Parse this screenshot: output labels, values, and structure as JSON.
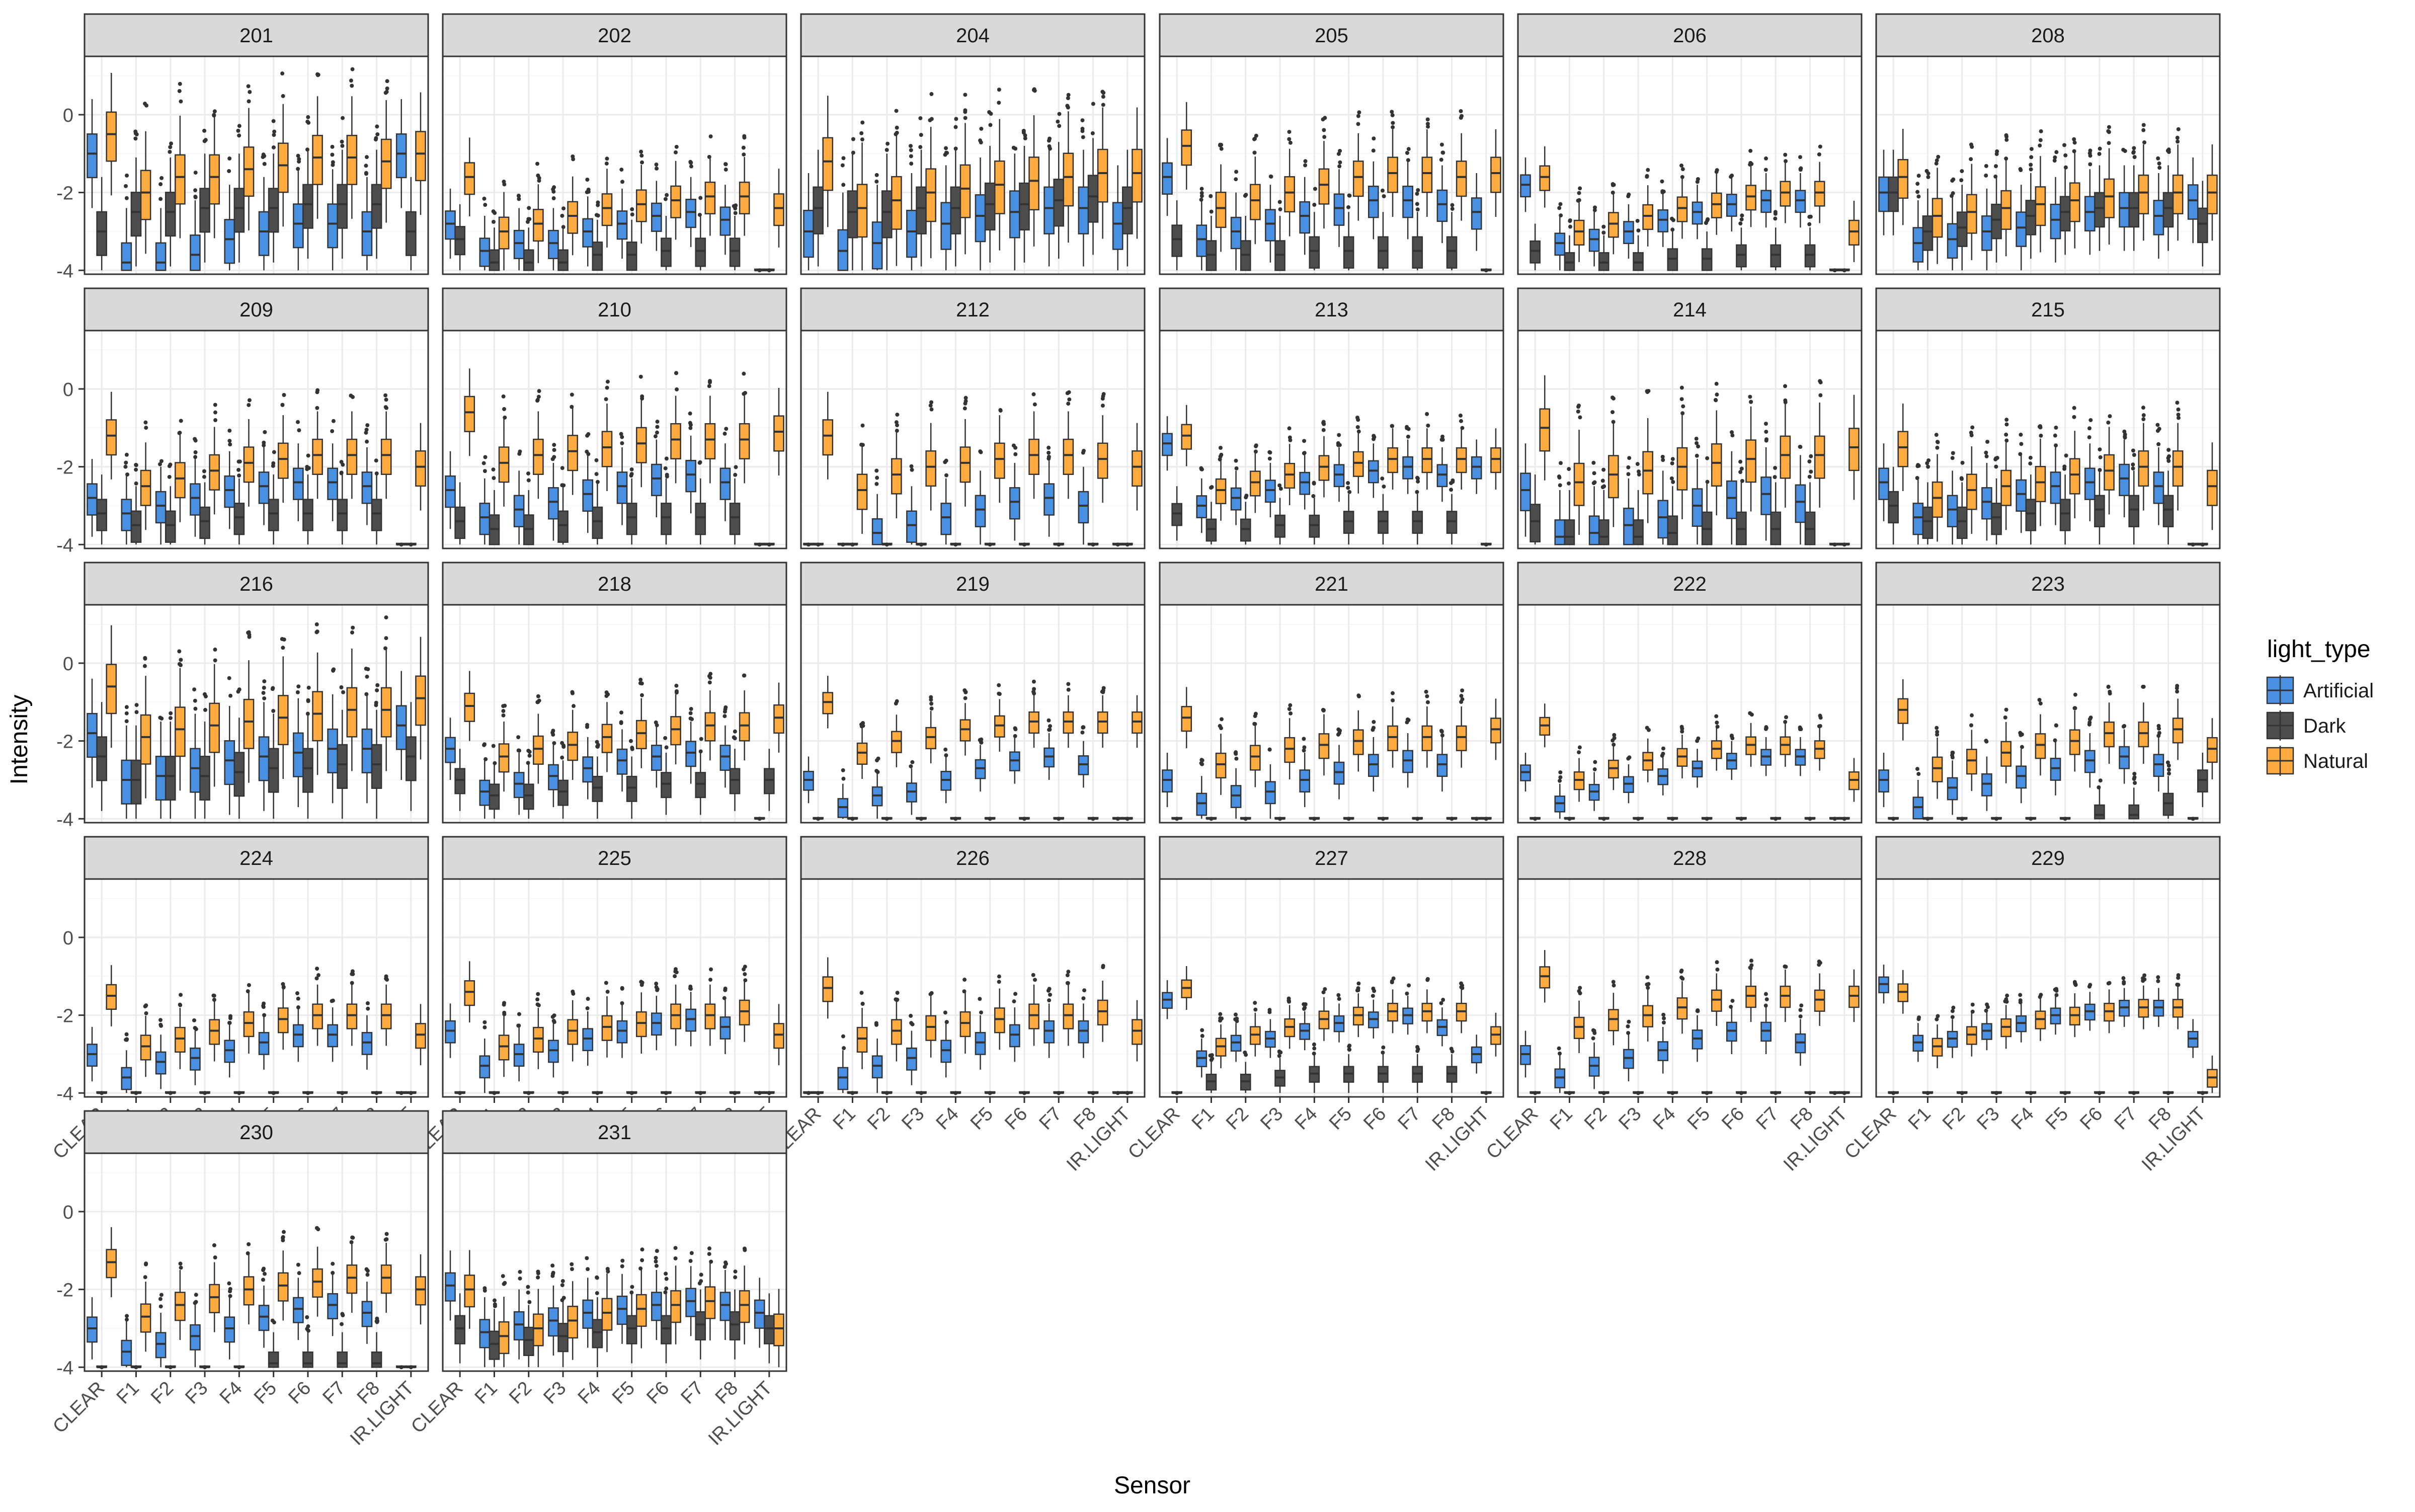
{
  "chart_data": {
    "type": "boxplot",
    "facet_by": "device",
    "xlabel": "Sensor",
    "ylabel": "Intensity",
    "x_categories": [
      "CLEAR",
      "F1",
      "F2",
      "F3",
      "F4",
      "F5",
      "F6",
      "F7",
      "F8",
      "IR.LIGHT"
    ],
    "y_ticks": [
      0,
      -2,
      -4
    ],
    "ylim": [
      -4.1,
      1.5
    ],
    "grid": true,
    "legend": {
      "title": "light_type",
      "position": "right",
      "entries": [
        {
          "name": "Artificial",
          "color": "#4a90e2"
        },
        {
          "name": "Dark",
          "color": "#4d4d4d"
        },
        {
          "name": "Natural",
          "color": "#ffab40"
        }
      ]
    },
    "x_axis_shown_on_panels": [
      "224",
      "225",
      "226",
      "227",
      "228",
      "229",
      "230",
      "231"
    ],
    "series_median_profiles": {
      "description_note": "",
      "panels": [
        {
          "id": "201",
          "artificial": [
            -1.0,
            -3.8,
            -3.8,
            -3.6,
            -3.2,
            -3.0,
            -2.8,
            -2.8,
            -3.0,
            -1.0
          ],
          "dark": [
            -3.0,
            -2.5,
            -2.5,
            -2.4,
            -2.4,
            -2.4,
            -2.3,
            -2.3,
            -2.3,
            -3.0
          ],
          "natural": [
            -0.5,
            -2.0,
            -1.6,
            -1.6,
            -1.4,
            -1.3,
            -1.1,
            -1.1,
            -1.2,
            -1.0
          ],
          "spread": 1.4
        },
        {
          "id": "202",
          "artificial": [
            -2.8,
            -3.5,
            -3.3,
            -3.3,
            -3.0,
            -2.8,
            -2.6,
            -2.5,
            -2.7,
            -4.0
          ],
          "dark": [
            -3.2,
            -3.8,
            -3.8,
            -3.8,
            -3.6,
            -3.6,
            -3.5,
            -3.5,
            -3.5,
            -4.0
          ],
          "natural": [
            -1.6,
            -3.0,
            -2.8,
            -2.6,
            -2.4,
            -2.3,
            -2.2,
            -2.1,
            -2.1,
            -2.4
          ],
          "spread": 0.9
        },
        {
          "id": "204",
          "artificial": [
            -3.0,
            -3.5,
            -3.3,
            -3.0,
            -2.8,
            -2.6,
            -2.5,
            -2.4,
            -2.4,
            -2.8
          ],
          "dark": [
            -2.4,
            -2.5,
            -2.5,
            -2.4,
            -2.4,
            -2.3,
            -2.3,
            -2.2,
            -2.1,
            -2.4
          ],
          "natural": [
            -1.2,
            -2.4,
            -2.2,
            -2.0,
            -1.9,
            -1.8,
            -1.7,
            -1.6,
            -1.5,
            -1.5
          ],
          "spread": 1.5
        },
        {
          "id": "205",
          "artificial": [
            -1.6,
            -3.2,
            -3.0,
            -2.8,
            -2.6,
            -2.4,
            -2.2,
            -2.2,
            -2.3,
            -2.5
          ],
          "dark": [
            -3.2,
            -3.6,
            -3.6,
            -3.6,
            -3.5,
            -3.5,
            -3.5,
            -3.5,
            -3.5,
            -4.0
          ],
          "natural": [
            -0.8,
            -2.4,
            -2.2,
            -2.0,
            -1.8,
            -1.6,
            -1.5,
            -1.5,
            -1.6,
            -1.5
          ],
          "spread": 1.0
        },
        {
          "id": "206",
          "artificial": [
            -1.8,
            -3.3,
            -3.2,
            -3.0,
            -2.7,
            -2.5,
            -2.3,
            -2.2,
            -2.2,
            -4.0
          ],
          "dark": [
            -3.5,
            -3.8,
            -3.8,
            -3.8,
            -3.7,
            -3.7,
            -3.6,
            -3.6,
            -3.6,
            -4.0
          ],
          "natural": [
            -1.6,
            -3.0,
            -2.8,
            -2.6,
            -2.4,
            -2.3,
            -2.1,
            -2.0,
            -2.0,
            -3.0
          ],
          "spread": 0.7
        },
        {
          "id": "208",
          "artificial": [
            -2.0,
            -3.3,
            -3.2,
            -3.0,
            -2.9,
            -2.7,
            -2.5,
            -2.4,
            -2.6,
            -2.2
          ],
          "dark": [
            -2.0,
            -3.0,
            -2.9,
            -2.7,
            -2.6,
            -2.5,
            -2.4,
            -2.4,
            -2.4,
            -2.8
          ],
          "natural": [
            -1.6,
            -2.6,
            -2.5,
            -2.4,
            -2.3,
            -2.2,
            -2.1,
            -2.0,
            -2.0,
            -2.0
          ],
          "spread": 1.1
        },
        {
          "id": "209",
          "artificial": [
            -2.8,
            -3.2,
            -3.0,
            -2.8,
            -2.6,
            -2.5,
            -2.4,
            -2.4,
            -2.5,
            -4.0
          ],
          "dark": [
            -3.2,
            -3.5,
            -3.5,
            -3.4,
            -3.3,
            -3.2,
            -3.2,
            -3.2,
            -3.2,
            -4.0
          ],
          "natural": [
            -1.2,
            -2.5,
            -2.3,
            -2.1,
            -1.9,
            -1.8,
            -1.7,
            -1.7,
            -1.7,
            -2.0
          ],
          "spread": 1.0
        },
        {
          "id": "210",
          "artificial": [
            -2.6,
            -3.3,
            -3.1,
            -2.9,
            -2.7,
            -2.5,
            -2.3,
            -2.2,
            -2.4,
            -4.0
          ],
          "dark": [
            -3.4,
            -3.6,
            -3.6,
            -3.5,
            -3.4,
            -3.3,
            -3.3,
            -3.3,
            -3.3,
            -4.0
          ],
          "natural": [
            -0.6,
            -1.9,
            -1.7,
            -1.6,
            -1.5,
            -1.4,
            -1.3,
            -1.3,
            -1.3,
            -1.1
          ],
          "spread": 1.0
        },
        {
          "id": "212",
          "artificial": [
            -4.0,
            -4.0,
            -3.7,
            -3.5,
            -3.3,
            -3.1,
            -2.9,
            -2.8,
            -3.0,
            -4.0
          ],
          "dark": [
            -4.0,
            -4.0,
            -4.0,
            -4.0,
            -4.0,
            -4.0,
            -4.0,
            -4.0,
            -4.0,
            -4.0
          ],
          "natural": [
            -1.2,
            -2.6,
            -2.2,
            -2.0,
            -1.9,
            -1.8,
            -1.7,
            -1.7,
            -1.8,
            -2.0
          ],
          "spread": 1.0
        },
        {
          "id": "213",
          "artificial": [
            -1.4,
            -3.0,
            -2.8,
            -2.6,
            -2.4,
            -2.2,
            -2.1,
            -2.0,
            -2.2,
            -2.0
          ],
          "dark": [
            -3.2,
            -3.6,
            -3.6,
            -3.5,
            -3.5,
            -3.4,
            -3.4,
            -3.4,
            -3.4,
            -4.0
          ],
          "natural": [
            -1.2,
            -2.6,
            -2.4,
            -2.2,
            -2.0,
            -1.9,
            -1.8,
            -1.8,
            -1.8,
            -1.8
          ],
          "spread": 0.7
        },
        {
          "id": "214",
          "artificial": [
            -2.6,
            -3.8,
            -3.7,
            -3.5,
            -3.3,
            -3.0,
            -2.8,
            -2.7,
            -2.9,
            -4.0
          ],
          "dark": [
            -3.4,
            -3.8,
            -3.8,
            -3.8,
            -3.7,
            -3.6,
            -3.6,
            -3.6,
            -3.6,
            -4.0
          ],
          "natural": [
            -1.0,
            -2.4,
            -2.2,
            -2.1,
            -2.0,
            -1.9,
            -1.8,
            -1.7,
            -1.7,
            -1.5
          ],
          "spread": 1.2
        },
        {
          "id": "215",
          "artificial": [
            -2.4,
            -3.3,
            -3.1,
            -2.9,
            -2.7,
            -2.5,
            -2.4,
            -2.3,
            -2.5,
            -4.0
          ],
          "dark": [
            -3.0,
            -3.4,
            -3.4,
            -3.3,
            -3.2,
            -3.2,
            -3.1,
            -3.1,
            -3.1,
            -4.0
          ],
          "natural": [
            -1.5,
            -2.8,
            -2.6,
            -2.5,
            -2.4,
            -2.2,
            -2.1,
            -2.0,
            -2.0,
            -2.5
          ],
          "spread": 1.0
        },
        {
          "id": "216",
          "artificial": [
            -1.8,
            -3.0,
            -2.9,
            -2.7,
            -2.5,
            -2.4,
            -2.3,
            -2.2,
            -2.2,
            -1.6
          ],
          "dark": [
            -2.4,
            -3.0,
            -2.9,
            -2.9,
            -2.8,
            -2.7,
            -2.7,
            -2.6,
            -2.6,
            -2.4
          ],
          "natural": [
            -0.6,
            -1.9,
            -1.7,
            -1.6,
            -1.5,
            -1.4,
            -1.3,
            -1.2,
            -1.2,
            -0.9
          ],
          "spread": 1.4
        },
        {
          "id": "218",
          "artificial": [
            -2.2,
            -3.3,
            -3.1,
            -2.9,
            -2.7,
            -2.5,
            -2.4,
            -2.3,
            -2.4,
            -4.0
          ],
          "dark": [
            -3.0,
            -3.4,
            -3.4,
            -3.3,
            -3.2,
            -3.2,
            -3.1,
            -3.1,
            -3.0,
            -3.0
          ],
          "natural": [
            -1.1,
            -2.4,
            -2.2,
            -2.1,
            -1.9,
            -1.8,
            -1.7,
            -1.6,
            -1.6,
            -1.4
          ],
          "spread": 0.8
        },
        {
          "id": "219",
          "artificial": [
            -3.0,
            -3.7,
            -3.4,
            -3.3,
            -3.0,
            -2.7,
            -2.5,
            -2.4,
            -2.6,
            -4.0
          ],
          "dark": [
            -4.0,
            -4.0,
            -4.0,
            -4.0,
            -4.0,
            -4.0,
            -4.0,
            -4.0,
            -4.0,
            -4.0
          ],
          "natural": [
            -1.0,
            -2.3,
            -2.0,
            -1.9,
            -1.7,
            -1.6,
            -1.5,
            -1.5,
            -1.5,
            -1.5
          ],
          "spread": 0.6
        },
        {
          "id": "221",
          "artificial": [
            -3.0,
            -3.6,
            -3.4,
            -3.3,
            -3.0,
            -2.8,
            -2.6,
            -2.5,
            -2.6,
            -4.0
          ],
          "dark": [
            -4.0,
            -4.0,
            -4.0,
            -4.0,
            -4.0,
            -4.0,
            -4.0,
            -4.0,
            -4.0,
            -4.0
          ],
          "natural": [
            -1.4,
            -2.6,
            -2.4,
            -2.2,
            -2.1,
            -2.0,
            -1.9,
            -1.9,
            -1.9,
            -1.7
          ],
          "spread": 0.7
        },
        {
          "id": "222",
          "artificial": [
            -2.8,
            -3.6,
            -3.3,
            -3.1,
            -2.9,
            -2.7,
            -2.5,
            -2.4,
            -2.4,
            -4.0
          ],
          "dark": [
            -4.0,
            -4.0,
            -4.0,
            -4.0,
            -4.0,
            -4.0,
            -4.0,
            -4.0,
            -4.0,
            -4.0
          ],
          "natural": [
            -1.6,
            -3.0,
            -2.7,
            -2.5,
            -2.4,
            -2.2,
            -2.1,
            -2.1,
            -2.2,
            -3.0
          ],
          "spread": 0.5
        },
        {
          "id": "223",
          "artificial": [
            -3.0,
            -3.7,
            -3.2,
            -3.1,
            -2.9,
            -2.7,
            -2.5,
            -2.4,
            -2.6,
            -4.0
          ],
          "dark": [
            -4.0,
            -4.0,
            -4.0,
            -4.0,
            -4.0,
            -4.0,
            -3.9,
            -3.9,
            -3.6,
            -3.0
          ],
          "natural": [
            -1.2,
            -2.7,
            -2.5,
            -2.3,
            -2.1,
            -2.0,
            -1.8,
            -1.8,
            -1.7,
            -2.2
          ],
          "spread": 0.7
        },
        {
          "id": "224",
          "artificial": [
            -3.0,
            -3.6,
            -3.2,
            -3.1,
            -2.9,
            -2.7,
            -2.5,
            -2.5,
            -2.7,
            -4.0
          ],
          "dark": [
            -4.0,
            -4.0,
            -4.0,
            -4.0,
            -4.0,
            -4.0,
            -4.0,
            -4.0,
            -4.0,
            -4.0
          ],
          "natural": [
            -1.5,
            -2.8,
            -2.6,
            -2.4,
            -2.2,
            -2.1,
            -2.0,
            -2.0,
            -2.0,
            -2.5
          ],
          "spread": 0.7
        },
        {
          "id": "225",
          "artificial": [
            -2.4,
            -3.3,
            -3.0,
            -2.9,
            -2.6,
            -2.4,
            -2.2,
            -2.1,
            -2.3,
            -4.0
          ],
          "dark": [
            -4.0,
            -4.0,
            -4.0,
            -4.0,
            -4.0,
            -4.0,
            -4.0,
            -4.0,
            -4.0,
            -4.0
          ],
          "natural": [
            -1.4,
            -2.8,
            -2.6,
            -2.4,
            -2.3,
            -2.2,
            -2.0,
            -2.0,
            -1.9,
            -2.5
          ],
          "spread": 0.7
        },
        {
          "id": "226",
          "artificial": [
            -4.0,
            -3.6,
            -3.3,
            -3.1,
            -2.9,
            -2.7,
            -2.5,
            -2.4,
            -2.4,
            -4.0
          ],
          "dark": [
            -4.0,
            -4.0,
            -4.0,
            -4.0,
            -4.0,
            -4.0,
            -4.0,
            -4.0,
            -4.0,
            -4.0
          ],
          "natural": [
            -1.3,
            -2.6,
            -2.4,
            -2.3,
            -2.2,
            -2.1,
            -2.0,
            -2.0,
            -1.9,
            -2.4
          ],
          "spread": 0.7
        },
        {
          "id": "227",
          "artificial": [
            -1.6,
            -3.1,
            -2.7,
            -2.6,
            -2.4,
            -2.2,
            -2.1,
            -2.0,
            -2.3,
            -3.0
          ],
          "dark": [
            -4.0,
            -3.7,
            -3.7,
            -3.6,
            -3.5,
            -3.5,
            -3.5,
            -3.5,
            -3.5,
            -4.0
          ],
          "natural": [
            -1.3,
            -2.8,
            -2.5,
            -2.3,
            -2.1,
            -2.0,
            -1.9,
            -1.9,
            -1.9,
            -2.5
          ],
          "spread": 0.5
        },
        {
          "id": "228",
          "artificial": [
            -3.0,
            -3.6,
            -3.3,
            -3.1,
            -2.9,
            -2.6,
            -2.4,
            -2.4,
            -2.7,
            -4.0
          ],
          "dark": [
            -4.0,
            -4.0,
            -4.0,
            -4.0,
            -4.0,
            -4.0,
            -4.0,
            -4.0,
            -4.0,
            -4.0
          ],
          "natural": [
            -1.0,
            -2.3,
            -2.1,
            -2.0,
            -1.8,
            -1.6,
            -1.5,
            -1.5,
            -1.6,
            -1.5
          ],
          "spread": 0.6
        },
        {
          "id": "229",
          "artificial": [
            -1.2,
            -2.7,
            -2.6,
            -2.4,
            -2.2,
            -2.0,
            -1.9,
            -1.8,
            -1.8,
            -2.6
          ],
          "dark": [
            -4.0,
            -4.0,
            -4.0,
            -4.0,
            -4.0,
            -4.0,
            -4.0,
            -4.0,
            -4.0,
            -4.0
          ],
          "natural": [
            -1.4,
            -2.8,
            -2.5,
            -2.3,
            -2.1,
            -2.0,
            -1.9,
            -1.8,
            -1.8,
            -3.6
          ],
          "spread": 0.5
        },
        {
          "id": "230",
          "artificial": [
            -3.0,
            -3.6,
            -3.4,
            -3.2,
            -3.0,
            -2.7,
            -2.5,
            -2.4,
            -2.6,
            -4.0
          ],
          "dark": [
            -4.0,
            -4.0,
            -4.0,
            -4.0,
            -4.0,
            -3.9,
            -3.9,
            -3.9,
            -3.9,
            -4.0
          ],
          "natural": [
            -1.3,
            -2.7,
            -2.4,
            -2.2,
            -2.0,
            -1.9,
            -1.8,
            -1.7,
            -1.7,
            -2.0
          ],
          "spread": 0.8
        },
        {
          "id": "231",
          "artificial": [
            -1.9,
            -3.1,
            -2.9,
            -2.8,
            -2.6,
            -2.5,
            -2.4,
            -2.3,
            -2.4,
            -2.6
          ],
          "dark": [
            -3.0,
            -3.4,
            -3.3,
            -3.2,
            -3.1,
            -3.0,
            -3.0,
            -2.9,
            -2.9,
            -3.0
          ],
          "natural": [
            -2.0,
            -3.2,
            -3.0,
            -2.8,
            -2.6,
            -2.5,
            -2.4,
            -2.3,
            -2.4,
            -3.0
          ],
          "spread": 0.9
        }
      ]
    }
  }
}
